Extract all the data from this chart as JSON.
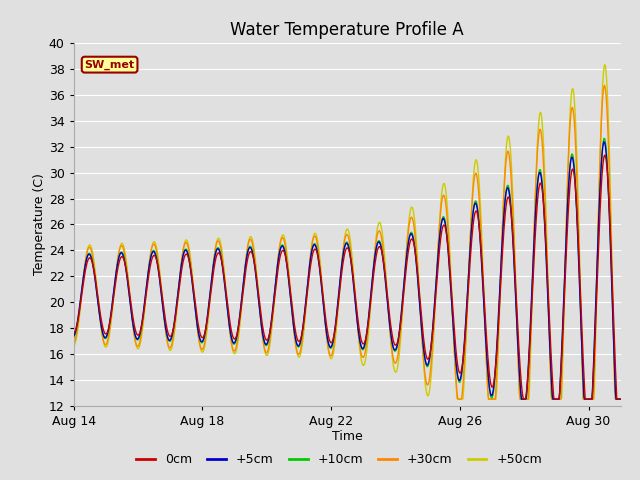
{
  "title": "Water Temperature Profile A",
  "xlabel": "Time",
  "ylabel": "Temperature (C)",
  "ylim": [
    12,
    40
  ],
  "yticks": [
    12,
    14,
    16,
    18,
    20,
    22,
    24,
    26,
    28,
    30,
    32,
    34,
    36,
    38,
    40
  ],
  "x_tick_days": [
    14,
    18,
    22,
    26,
    30
  ],
  "x_tick_labels": [
    "Aug 14",
    "Aug 18",
    "Aug 22",
    "Aug 26",
    "Aug 30"
  ],
  "series_colors": [
    "#cc0000",
    "#0000cc",
    "#00cc00",
    "#ff8800",
    "#cccc00"
  ],
  "series_labels": [
    "0cm",
    "+5cm",
    "+10cm",
    "+30cm",
    "+50cm"
  ],
  "background_color": "#e0e0e0",
  "plot_bg_color": "#e0e0e0",
  "grid_color": "#ffffff",
  "annotation_text": "SW_met",
  "annotation_bg": "#ffff99",
  "annotation_border": "#990000",
  "title_fontsize": 12,
  "axis_label_fontsize": 9,
  "tick_fontsize": 9,
  "legend_fontsize": 9
}
